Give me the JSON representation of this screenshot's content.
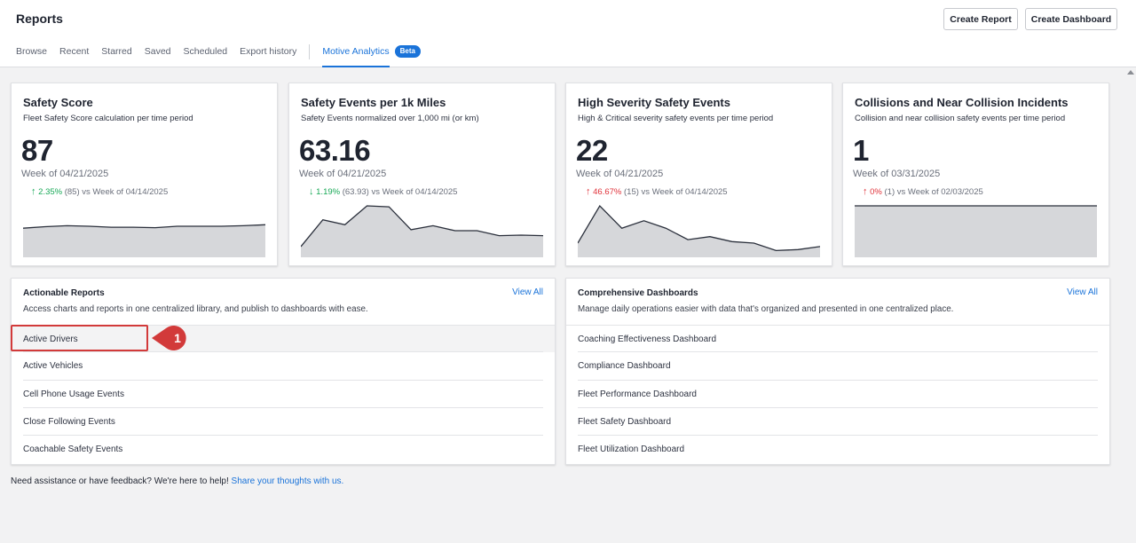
{
  "header": {
    "title": "Reports",
    "create_report_label": "Create Report",
    "create_dashboard_label": "Create Dashboard"
  },
  "tabs": [
    {
      "label": "Browse"
    },
    {
      "label": "Recent"
    },
    {
      "label": "Starred"
    },
    {
      "label": "Saved"
    },
    {
      "label": "Scheduled"
    },
    {
      "label": "Export history"
    },
    {
      "label": "Motive Analytics",
      "active": true,
      "badge": "Beta"
    }
  ],
  "metrics": [
    {
      "title": "Safety Score",
      "subtitle": "Fleet Safety Score calculation per time period",
      "value": "87",
      "week": "Week of 04/21/2025",
      "change_pct": "2.35%",
      "change_detail": "(85) vs Week of 04/14/2025",
      "direction": "up",
      "sentiment": "good",
      "trend": [
        0.55,
        0.58,
        0.6,
        0.59,
        0.57,
        0.57,
        0.56,
        0.59,
        0.59,
        0.59,
        0.6,
        0.62
      ]
    },
    {
      "title": "Safety Events per 1k Miles",
      "subtitle": "Safety Events normalized over 1,000 mi (or km)",
      "value": "63.16",
      "week": "Week of 04/21/2025",
      "change_pct": "1.19%",
      "change_detail": "(63.93) vs Week of 04/14/2025",
      "direction": "down",
      "sentiment": "good",
      "trend": [
        0.18,
        0.72,
        0.62,
        1.0,
        0.98,
        0.52,
        0.6,
        0.5,
        0.5,
        0.4,
        0.41,
        0.4
      ]
    },
    {
      "title": "High Severity Safety Events",
      "subtitle": "High & Critical severity safety events per time period",
      "value": "22",
      "week": "Week of 04/21/2025",
      "change_pct": "46.67%",
      "change_detail": "(15) vs Week of 04/14/2025",
      "direction": "up",
      "sentiment": "bad",
      "trend": [
        0.25,
        1.0,
        0.55,
        0.7,
        0.55,
        0.32,
        0.38,
        0.28,
        0.25,
        0.1,
        0.12,
        0.18
      ]
    },
    {
      "title": "Collisions and Near Collision Incidents",
      "subtitle": "Collision and near collision safety events per time period",
      "value": "1",
      "week": "Week of 03/31/2025",
      "change_pct": "0%",
      "change_detail": "(1) vs Week of 02/03/2025",
      "direction": "up",
      "sentiment": "bad",
      "trend": [
        1,
        1,
        1,
        1,
        1,
        1,
        1,
        1,
        1,
        1,
        1,
        1
      ]
    }
  ],
  "actionable_reports": {
    "title": "Actionable Reports",
    "description": "Access charts and reports in one centralized library, and publish to dashboards with ease.",
    "view_all": "View All",
    "items": [
      "Active Drivers",
      "Active Vehicles",
      "Cell Phone Usage Events",
      "Close Following Events",
      "Coachable Safety Events"
    ]
  },
  "dashboards": {
    "title": "Comprehensive Dashboards",
    "description": "Manage daily operations easier with data that's organized and presented in one centralized place.",
    "view_all": "View All",
    "items": [
      "Coaching Effectiveness Dashboard",
      "Compliance Dashboard",
      "Fleet Performance Dashboard",
      "Fleet Safety Dashboard",
      "Fleet Utilization Dashboard"
    ]
  },
  "annotation": {
    "step_number": "1",
    "color": "#d23a3a"
  },
  "footer": {
    "text": "Need assistance or have feedback? We're here to help!",
    "link": "Share your thoughts with us."
  },
  "colors": {
    "accent": "#1a73d9",
    "positive": "#18a957",
    "negative": "#e0323a",
    "sparkline_fill": "#d6d7da",
    "sparkline_line": "#2a2f3b"
  }
}
